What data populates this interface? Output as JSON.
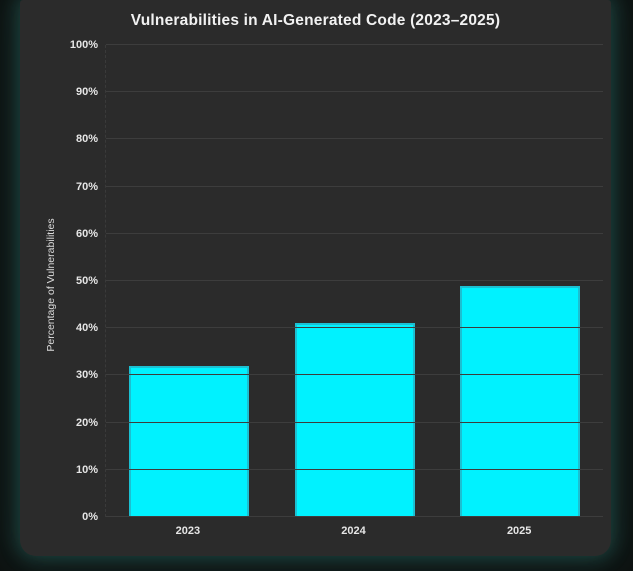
{
  "window": {
    "background": "#0d1110",
    "card_background": "#2b2b2b",
    "edge_glow_color": "#3ea89e"
  },
  "chart_data": {
    "type": "bar",
    "title": "Vulnerabilities in AI-Generated Code (2023–2025)",
    "categories": [
      "2023",
      "2024",
      "2025"
    ],
    "values": [
      32,
      41,
      49
    ],
    "xlabel": "",
    "ylabel": "Percentage of Vulnerabilities",
    "ylim": [
      0,
      100
    ],
    "ytick_step": 10,
    "ytick_suffix": "%",
    "ytick_labels": [
      "0%",
      "10%",
      "20%",
      "30%",
      "40%",
      "50%",
      "60%",
      "70%",
      "80%",
      "90%",
      "100%"
    ],
    "grid": "horizontal",
    "legend": "none",
    "bar_color": "#00f2ff",
    "bar_edge_color": "#1cc0d2",
    "gridline_color": "#3d3d3d",
    "tick_label_color": "#e6e6e6",
    "title_color": "#f2f2f2",
    "axis_label_color": "#dcdcdc"
  }
}
